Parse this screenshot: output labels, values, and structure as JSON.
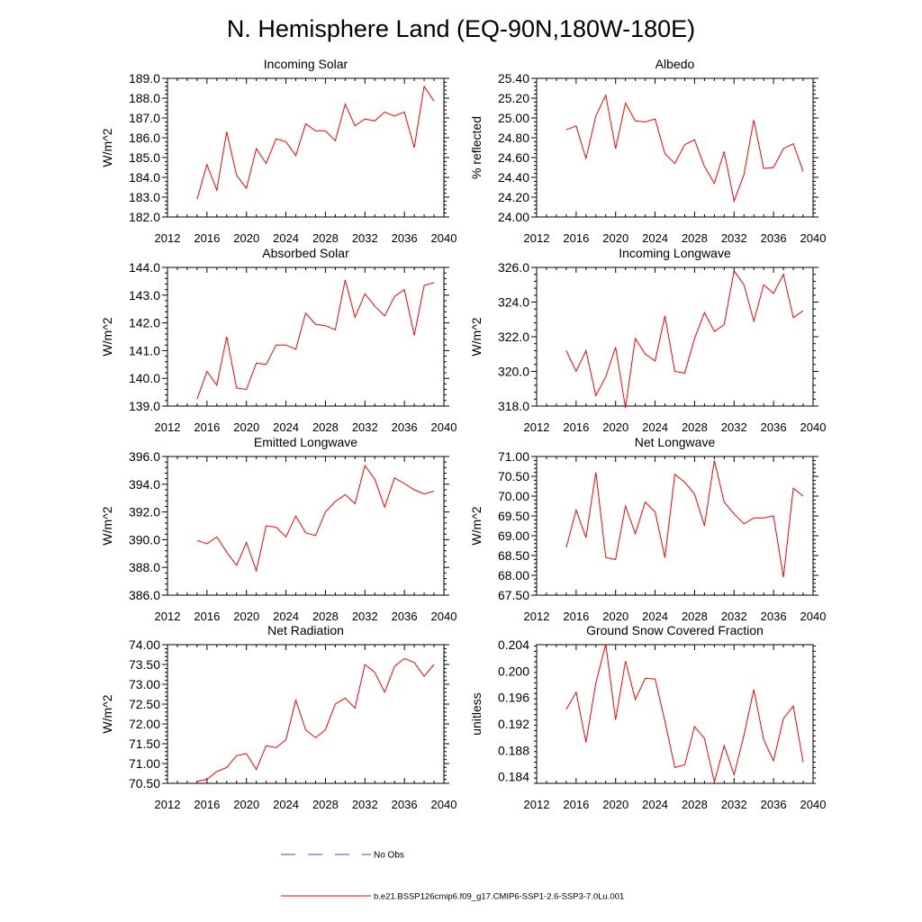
{
  "figure": {
    "title": "N. Hemisphere Land (EQ-90N,180W-180E)"
  },
  "legend": {
    "items": [
      {
        "label": "No Obs",
        "color": "#3b4fbf",
        "style": "dashed"
      },
      {
        "label": "b.e21.BSSP126cmip6.f09_g17.CMIP6-SSP1-2.6-SSP3-7.0Lu.001",
        "color": "#ff0000",
        "style": "solid"
      }
    ]
  },
  "chart_data": [
    {
      "type": "line",
      "title": "Incoming Solar",
      "xlabel": "",
      "ylabel": "W/m^2",
      "xlim": [
        2012,
        2040
      ],
      "ylim": [
        182.0,
        189.0
      ],
      "xticks": [
        "2012",
        "2016",
        "2020",
        "2024",
        "2028",
        "2032",
        "2036",
        "2040"
      ],
      "yticks": [
        "182.0",
        "183.0",
        "184.0",
        "185.0",
        "186.0",
        "187.0",
        "188.0",
        "189.0"
      ],
      "grid": false,
      "series": [
        {
          "color": "#ff0000",
          "x": [
            2015,
            2016,
            2017,
            2018,
            2019,
            2020,
            2021,
            2022,
            2023,
            2024,
            2025,
            2026,
            2027,
            2028,
            2029,
            2030,
            2031,
            2032,
            2033,
            2034,
            2035,
            2036,
            2037,
            2038,
            2039
          ],
          "y": [
            182.9,
            184.65,
            183.35,
            186.3,
            184.1,
            183.45,
            185.45,
            184.7,
            185.95,
            185.8,
            185.1,
            186.7,
            186.35,
            186.35,
            185.85,
            187.7,
            186.6,
            186.95,
            186.85,
            187.3,
            187.1,
            187.3,
            185.5,
            188.6,
            187.85
          ]
        }
      ]
    },
    {
      "type": "line",
      "title": "Albedo",
      "xlabel": "",
      "ylabel": "% reflected",
      "xlim": [
        2012,
        2040
      ],
      "ylim": [
        24.0,
        25.4
      ],
      "xticks": [
        "2012",
        "2016",
        "2020",
        "2024",
        "2028",
        "2032",
        "2036",
        "2040"
      ],
      "yticks": [
        "24.00",
        "24.20",
        "24.40",
        "24.60",
        "24.80",
        "25.00",
        "25.20",
        "25.40"
      ],
      "grid": false,
      "series": [
        {
          "color": "#ff0000",
          "x": [
            2015,
            2016,
            2017,
            2018,
            2019,
            2020,
            2021,
            2022,
            2023,
            2024,
            2025,
            2026,
            2027,
            2028,
            2029,
            2030,
            2031,
            2032,
            2033,
            2034,
            2035,
            2036,
            2037,
            2038,
            2039
          ],
          "y": [
            24.88,
            24.92,
            24.59,
            25.02,
            25.23,
            24.69,
            25.15,
            24.97,
            24.96,
            24.99,
            24.64,
            24.54,
            24.73,
            24.78,
            24.51,
            24.34,
            24.66,
            24.16,
            24.43,
            24.98,
            24.49,
            24.5,
            24.69,
            24.74,
            24.46
          ]
        }
      ]
    },
    {
      "type": "line",
      "title": "Absorbed Solar",
      "xlabel": "",
      "ylabel": "W/m^2",
      "xlim": [
        2012,
        2040
      ],
      "ylim": [
        139.0,
        144.0
      ],
      "xticks": [
        "2012",
        "2016",
        "2020",
        "2024",
        "2028",
        "2032",
        "2036",
        "2040"
      ],
      "yticks": [
        "139.0",
        "140.0",
        "141.0",
        "142.0",
        "143.0",
        "144.0"
      ],
      "grid": false,
      "series": [
        {
          "color": "#ff0000",
          "x": [
            2015,
            2016,
            2017,
            2018,
            2019,
            2020,
            2021,
            2022,
            2023,
            2024,
            2025,
            2026,
            2027,
            2028,
            2029,
            2030,
            2031,
            2032,
            2033,
            2034,
            2035,
            2036,
            2037,
            2038,
            2039
          ],
          "y": [
            139.25,
            140.25,
            139.75,
            141.5,
            139.65,
            139.6,
            140.55,
            140.5,
            141.2,
            141.2,
            141.05,
            142.35,
            141.95,
            141.9,
            141.75,
            143.55,
            142.2,
            143.05,
            142.6,
            142.25,
            142.95,
            143.2,
            141.55,
            143.35,
            143.45
          ]
        }
      ]
    },
    {
      "type": "line",
      "title": "Incoming Longwave",
      "xlabel": "",
      "ylabel": "W/m^2",
      "xlim": [
        2012,
        2040
      ],
      "ylim": [
        318.0,
        326.0
      ],
      "xticks": [
        "2012",
        "2016",
        "2020",
        "2024",
        "2028",
        "2032",
        "2036",
        "2040"
      ],
      "yticks": [
        "318.0",
        "320.0",
        "322.0",
        "324.0",
        "326.0"
      ],
      "grid": false,
      "series": [
        {
          "color": "#ff0000",
          "x": [
            2015,
            2016,
            2017,
            2018,
            2019,
            2020,
            2021,
            2022,
            2023,
            2024,
            2025,
            2026,
            2027,
            2028,
            2029,
            2030,
            2031,
            2032,
            2033,
            2034,
            2035,
            2036,
            2037,
            2038,
            2039
          ],
          "y": [
            321.2,
            320.0,
            321.2,
            318.6,
            319.7,
            321.4,
            317.9,
            321.9,
            321.0,
            320.6,
            323.2,
            320.0,
            319.9,
            321.9,
            323.4,
            322.3,
            322.7,
            325.8,
            325.0,
            322.9,
            325.0,
            324.5,
            325.6,
            323.1,
            323.5
          ]
        }
      ]
    },
    {
      "type": "line",
      "title": "Emitted Longwave",
      "xlabel": "",
      "ylabel": "W/m^2",
      "xlim": [
        2012,
        2040
      ],
      "ylim": [
        386.0,
        396.0
      ],
      "xticks": [
        "2012",
        "2016",
        "2020",
        "2024",
        "2028",
        "2032",
        "2036",
        "2040"
      ],
      "yticks": [
        "386.0",
        "388.0",
        "390.0",
        "392.0",
        "394.0",
        "396.0"
      ],
      "grid": false,
      "series": [
        {
          "color": "#ff0000",
          "x": [
            2015,
            2016,
            2017,
            2018,
            2019,
            2020,
            2021,
            2022,
            2023,
            2024,
            2025,
            2026,
            2027,
            2028,
            2029,
            2030,
            2031,
            2032,
            2033,
            2034,
            2035,
            2036,
            2037,
            2038,
            2039
          ],
          "y": [
            389.95,
            389.7,
            390.2,
            389.1,
            388.15,
            389.8,
            387.75,
            391.0,
            390.9,
            390.2,
            391.7,
            390.5,
            390.3,
            392.0,
            392.75,
            393.25,
            392.6,
            395.35,
            394.35,
            392.35,
            394.45,
            394.05,
            393.6,
            393.3,
            393.5
          ]
        }
      ]
    },
    {
      "type": "line",
      "title": "Net Longwave",
      "xlabel": "",
      "ylabel": "W/m^2",
      "xlim": [
        2012,
        2040
      ],
      "ylim": [
        67.5,
        71.0
      ],
      "xticks": [
        "2012",
        "2016",
        "2020",
        "2024",
        "2028",
        "2032",
        "2036",
        "2040"
      ],
      "yticks": [
        "67.50",
        "68.00",
        "68.50",
        "69.00",
        "69.50",
        "70.00",
        "70.50",
        "71.00"
      ],
      "grid": false,
      "series": [
        {
          "color": "#ff0000",
          "x": [
            2015,
            2016,
            2017,
            2018,
            2019,
            2020,
            2021,
            2022,
            2023,
            2024,
            2025,
            2026,
            2027,
            2028,
            2029,
            2030,
            2031,
            2032,
            2033,
            2034,
            2035,
            2036,
            2037,
            2038,
            2039
          ],
          "y": [
            68.7,
            69.65,
            68.95,
            70.6,
            68.45,
            68.4,
            69.75,
            69.05,
            69.85,
            69.6,
            68.45,
            70.55,
            70.35,
            70.05,
            69.25,
            70.9,
            69.85,
            69.55,
            69.3,
            69.45,
            69.45,
            69.5,
            67.95,
            70.2,
            70.0
          ]
        }
      ]
    },
    {
      "type": "line",
      "title": "Net Radiation",
      "xlabel": "",
      "ylabel": "W/m^2",
      "xlim": [
        2012,
        2040
      ],
      "ylim": [
        70.5,
        74.0
      ],
      "xticks": [
        "2012",
        "2016",
        "2020",
        "2024",
        "2028",
        "2032",
        "2036",
        "2040"
      ],
      "yticks": [
        "70.50",
        "71.00",
        "71.50",
        "72.00",
        "72.50",
        "73.00",
        "73.50",
        "74.00"
      ],
      "grid": false,
      "series": [
        {
          "color": "#ff0000",
          "x": [
            2015,
            2016,
            2017,
            2018,
            2019,
            2020,
            2021,
            2022,
            2023,
            2024,
            2025,
            2026,
            2027,
            2028,
            2029,
            2030,
            2031,
            2032,
            2033,
            2034,
            2035,
            2036,
            2037,
            2038,
            2039
          ],
          "y": [
            70.55,
            70.6,
            70.8,
            70.9,
            71.2,
            71.25,
            70.85,
            71.45,
            71.4,
            71.6,
            72.6,
            71.85,
            71.65,
            71.85,
            72.5,
            72.65,
            72.4,
            73.5,
            73.3,
            72.8,
            73.45,
            73.65,
            73.55,
            73.2,
            73.5
          ]
        }
      ]
    },
    {
      "type": "line",
      "title": "Ground Snow Covered Fraction",
      "xlabel": "",
      "ylabel": "unitless",
      "xlim": [
        2012,
        2040
      ],
      "ylim": [
        0.183,
        0.204
      ],
      "xticks": [
        "2012",
        "2016",
        "2020",
        "2024",
        "2028",
        "2032",
        "2036",
        "2040"
      ],
      "yticks": [
        "0.184",
        "0.188",
        "0.192",
        "0.196",
        "0.200",
        "0.204"
      ],
      "grid": false,
      "series": [
        {
          "color": "#ff0000",
          "x": [
            2015,
            2016,
            2017,
            2018,
            2019,
            2020,
            2021,
            2022,
            2023,
            2024,
            2025,
            2026,
            2027,
            2028,
            2029,
            2030,
            2031,
            2032,
            2033,
            2034,
            2035,
            2036,
            2037,
            2038,
            2039
          ],
          "y": [
            0.1942,
            0.1968,
            0.1892,
            0.1982,
            0.2041,
            0.1926,
            0.2015,
            0.1957,
            0.1989,
            0.1988,
            0.1924,
            0.1854,
            0.1858,
            0.1916,
            0.1898,
            0.1832,
            0.1887,
            0.1843,
            0.1903,
            0.1972,
            0.1896,
            0.1864,
            0.1928,
            0.1947,
            0.1862
          ]
        }
      ]
    }
  ]
}
